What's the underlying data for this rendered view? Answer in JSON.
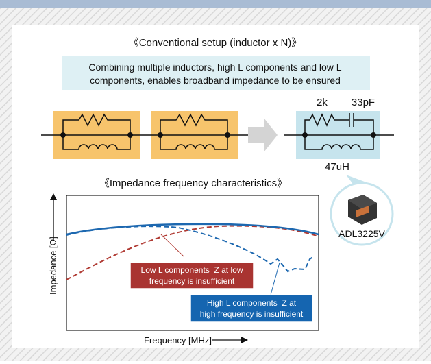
{
  "setup_title": "《Conventional setup (inductor x N)》",
  "description": [
    "Combining multiple inductors, high L components and low L",
    "components, enables broadband impedance to be ensured"
  ],
  "circuit": {
    "resistor": "2k",
    "capacitor": "33pF",
    "inductor": "47uH"
  },
  "product": "ADL3225V",
  "graph": {
    "title": "《Impedance frequency characteristics》",
    "y_label": "Impedance [Ω]",
    "x_label": "Frequency [MHz]",
    "low_l_note": [
      "Low L components  Z at low",
      "frequency is insufficient"
    ],
    "high_l_note": [
      "High L components  Z at",
      "high frequency is insufficient"
    ]
  }
}
